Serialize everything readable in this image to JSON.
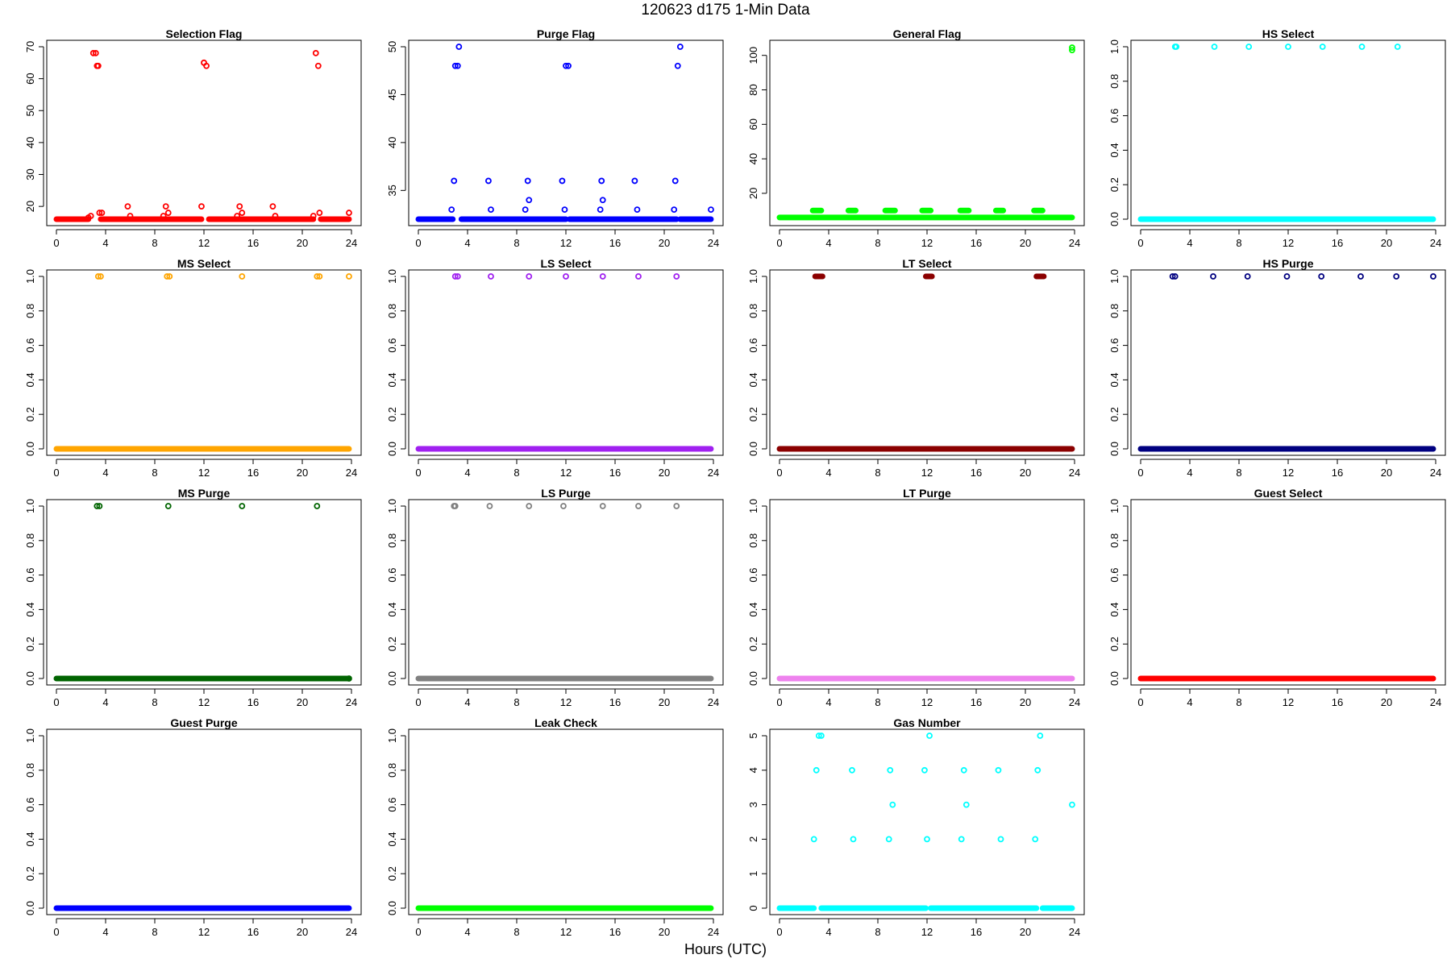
{
  "figure": {
    "title": "120623    d175    1-Min Data",
    "xlabel": "Hours (UTC)"
  },
  "chart_data": [
    {
      "type": "scatter",
      "title": "Selection Flag",
      "color": "#ff0000",
      "xlim": [
        0,
        24
      ],
      "ylim": [
        16,
        70
      ],
      "yticks": [
        20,
        30,
        40,
        50,
        60,
        70
      ],
      "xticks": [
        0,
        4,
        8,
        12,
        16,
        20,
        24
      ],
      "baseline": {
        "value": 16,
        "x_ranges": [
          [
            0,
            2.6
          ],
          [
            3.6,
            11.8
          ],
          [
            12.4,
            20.9
          ],
          [
            21.5,
            23.8
          ]
        ]
      },
      "points": [
        [
          2.6,
          16.5
        ],
        [
          2.8,
          17
        ],
        [
          3.0,
          68
        ],
        [
          3.2,
          68
        ],
        [
          3.3,
          64
        ],
        [
          3.4,
          64
        ],
        [
          3.5,
          18
        ],
        [
          3.7,
          18
        ],
        [
          5.8,
          20
        ],
        [
          6.0,
          17
        ],
        [
          8.7,
          17
        ],
        [
          8.9,
          20
        ],
        [
          9.1,
          18
        ],
        [
          11.8,
          20
        ],
        [
          12.0,
          65
        ],
        [
          12.2,
          64
        ],
        [
          14.7,
          17
        ],
        [
          14.9,
          20
        ],
        [
          15.1,
          18
        ],
        [
          17.6,
          20
        ],
        [
          17.8,
          17
        ],
        [
          20.9,
          17
        ],
        [
          21.1,
          68
        ],
        [
          21.3,
          64
        ],
        [
          21.4,
          18
        ],
        [
          23.8,
          18
        ]
      ]
    },
    {
      "type": "scatter",
      "title": "Purge Flag",
      "color": "#0000ff",
      "xlim": [
        0,
        24
      ],
      "ylim": [
        32,
        50
      ],
      "yticks": [
        35,
        40,
        45,
        50
      ],
      "xticks": [
        0,
        4,
        8,
        12,
        16,
        20,
        24
      ],
      "baseline": {
        "value": 32,
        "x_ranges": [
          [
            0,
            2.8
          ],
          [
            3.5,
            12.0
          ],
          [
            12.3,
            21.0
          ],
          [
            21.3,
            23.8
          ]
        ]
      },
      "points": [
        [
          2.7,
          33
        ],
        [
          2.9,
          36
        ],
        [
          3.0,
          48
        ],
        [
          3.2,
          48
        ],
        [
          3.3,
          50
        ],
        [
          5.7,
          36
        ],
        [
          5.9,
          33
        ],
        [
          8.7,
          33
        ],
        [
          8.9,
          36
        ],
        [
          9.0,
          34
        ],
        [
          11.7,
          36
        ],
        [
          11.9,
          33
        ],
        [
          12.0,
          48
        ],
        [
          12.2,
          48
        ],
        [
          14.8,
          33
        ],
        [
          14.9,
          36
        ],
        [
          15.0,
          34
        ],
        [
          17.6,
          36
        ],
        [
          17.8,
          33
        ],
        [
          20.8,
          33
        ],
        [
          20.9,
          36
        ],
        [
          21.1,
          48
        ],
        [
          21.3,
          50
        ],
        [
          23.8,
          33
        ]
      ]
    },
    {
      "type": "scatter",
      "title": "General Flag",
      "color": "#00ff00",
      "xlim": [
        0,
        24
      ],
      "ylim": [
        5,
        105
      ],
      "yticks": [
        20,
        40,
        60,
        80,
        100
      ],
      "xticks": [
        0,
        4,
        8,
        12,
        16,
        20,
        24
      ],
      "baseline": {
        "value": 6,
        "x_ranges": [
          [
            0,
            23.8
          ]
        ]
      },
      "segments": [
        {
          "value": 10,
          "x_ranges": [
            [
              2.7,
              3.4
            ],
            [
              5.6,
              6.2
            ],
            [
              8.6,
              9.4
            ],
            [
              11.6,
              12.3
            ],
            [
              14.7,
              15.4
            ],
            [
              17.6,
              18.2
            ],
            [
              20.7,
              21.4
            ]
          ]
        }
      ],
      "points": [
        [
          23.8,
          103
        ],
        [
          23.8,
          104.5
        ]
      ]
    },
    {
      "type": "scatter",
      "title": "HS Select",
      "color": "#00ffff",
      "xlim": [
        0,
        24
      ],
      "ylim": [
        0,
        1
      ],
      "yticks": [
        0.0,
        0.2,
        0.4,
        0.6,
        0.8,
        1.0
      ],
      "xticks": [
        0,
        4,
        8,
        12,
        16,
        20,
        24
      ],
      "baseline": {
        "value": 0,
        "x_ranges": [
          [
            0,
            23.8
          ]
        ]
      },
      "points": [
        [
          2.8,
          1
        ],
        [
          2.9,
          1
        ],
        [
          6.0,
          1
        ],
        [
          8.8,
          1
        ],
        [
          12.0,
          1
        ],
        [
          14.8,
          1
        ],
        [
          18.0,
          1
        ],
        [
          20.9,
          1
        ]
      ]
    },
    {
      "type": "scatter",
      "title": "MS Select",
      "color": "#ffa500",
      "xlim": [
        0,
        24
      ],
      "ylim": [
        0,
        1
      ],
      "yticks": [
        0.0,
        0.2,
        0.4,
        0.6,
        0.8,
        1.0
      ],
      "xticks": [
        0,
        4,
        8,
        12,
        16,
        20,
        24
      ],
      "baseline": {
        "value": 0,
        "x_ranges": [
          [
            0,
            23.8
          ]
        ]
      },
      "points": [
        [
          3.4,
          1
        ],
        [
          3.6,
          1
        ],
        [
          9.0,
          1
        ],
        [
          9.2,
          1
        ],
        [
          15.1,
          1
        ],
        [
          21.2,
          1
        ],
        [
          21.4,
          1
        ],
        [
          23.8,
          1
        ]
      ]
    },
    {
      "type": "scatter",
      "title": "LS Select",
      "color": "#a020f0",
      "xlim": [
        0,
        24
      ],
      "ylim": [
        0,
        1
      ],
      "yticks": [
        0.0,
        0.2,
        0.4,
        0.6,
        0.8,
        1.0
      ],
      "xticks": [
        0,
        4,
        8,
        12,
        16,
        20,
        24
      ],
      "baseline": {
        "value": 0,
        "x_ranges": [
          [
            0,
            23.8
          ]
        ]
      },
      "points": [
        [
          3.0,
          1
        ],
        [
          3.2,
          1
        ],
        [
          5.9,
          1
        ],
        [
          9.0,
          1
        ],
        [
          12.0,
          1
        ],
        [
          15.0,
          1
        ],
        [
          17.9,
          1
        ],
        [
          21.0,
          1
        ]
      ]
    },
    {
      "type": "scatter",
      "title": "LT Select",
      "color": "#8b0000",
      "xlim": [
        0,
        24
      ],
      "ylim": [
        0,
        1
      ],
      "yticks": [
        0.0,
        0.2,
        0.4,
        0.6,
        0.8,
        1.0
      ],
      "xticks": [
        0,
        4,
        8,
        12,
        16,
        20,
        24
      ],
      "baseline": {
        "value": 0,
        "x_ranges": [
          [
            0,
            23.8
          ]
        ]
      },
      "segments": [
        {
          "value": 1,
          "x_ranges": [
            [
              2.9,
              3.5
            ],
            [
              11.9,
              12.4
            ],
            [
              20.9,
              21.5
            ]
          ]
        }
      ],
      "points": []
    },
    {
      "type": "scatter",
      "title": "HS Purge",
      "color": "#000080",
      "xlim": [
        0,
        24
      ],
      "ylim": [
        0,
        1
      ],
      "yticks": [
        0.0,
        0.2,
        0.4,
        0.6,
        0.8,
        1.0
      ],
      "xticks": [
        0,
        4,
        8,
        12,
        16,
        20,
        24
      ],
      "baseline": {
        "value": 0,
        "x_ranges": [
          [
            0,
            23.8
          ]
        ]
      },
      "points": [
        [
          2.6,
          1
        ],
        [
          2.8,
          1
        ],
        [
          5.9,
          1
        ],
        [
          8.7,
          1
        ],
        [
          11.9,
          1
        ],
        [
          14.7,
          1
        ],
        [
          17.9,
          1
        ],
        [
          20.8,
          1
        ],
        [
          23.8,
          1
        ]
      ]
    },
    {
      "type": "scatter",
      "title": "MS Purge",
      "color": "#006400",
      "xlim": [
        0,
        24
      ],
      "ylim": [
        0,
        1
      ],
      "yticks": [
        0.0,
        0.2,
        0.4,
        0.6,
        0.8,
        1.0
      ],
      "xticks": [
        0,
        4,
        8,
        12,
        16,
        20,
        24
      ],
      "baseline": {
        "value": 0,
        "x_ranges": [
          [
            0,
            23.8
          ]
        ]
      },
      "points": [
        [
          3.3,
          1
        ],
        [
          3.5,
          1
        ],
        [
          9.1,
          1
        ],
        [
          15.1,
          1
        ],
        [
          21.2,
          1
        ],
        [
          23.8,
          0
        ]
      ]
    },
    {
      "type": "scatter",
      "title": "LS Purge",
      "color": "#808080",
      "xlim": [
        0,
        24
      ],
      "ylim": [
        0,
        1
      ],
      "yticks": [
        0.0,
        0.2,
        0.4,
        0.6,
        0.8,
        1.0
      ],
      "xticks": [
        0,
        4,
        8,
        12,
        16,
        20,
        24
      ],
      "baseline": {
        "value": 0,
        "x_ranges": [
          [
            0,
            23.8
          ]
        ]
      },
      "points": [
        [
          2.9,
          1
        ],
        [
          3.0,
          1
        ],
        [
          5.8,
          1
        ],
        [
          9.0,
          1
        ],
        [
          11.8,
          1
        ],
        [
          15.0,
          1
        ],
        [
          17.9,
          1
        ],
        [
          21.0,
          1
        ]
      ]
    },
    {
      "type": "scatter",
      "title": "LT Purge",
      "color": "#ee82ee",
      "xlim": [
        0,
        24
      ],
      "ylim": [
        0,
        1
      ],
      "yticks": [
        0.0,
        0.2,
        0.4,
        0.6,
        0.8,
        1.0
      ],
      "xticks": [
        0,
        4,
        8,
        12,
        16,
        20,
        24
      ],
      "baseline": {
        "value": 0,
        "x_ranges": [
          [
            0,
            23.8
          ]
        ]
      },
      "points": []
    },
    {
      "type": "scatter",
      "title": "Guest Select",
      "color": "#ff0000",
      "xlim": [
        0,
        24
      ],
      "ylim": [
        0,
        1
      ],
      "yticks": [
        0.0,
        0.2,
        0.4,
        0.6,
        0.8,
        1.0
      ],
      "xticks": [
        0,
        4,
        8,
        12,
        16,
        20,
        24
      ],
      "baseline": {
        "value": 0,
        "x_ranges": [
          [
            0,
            23.8
          ]
        ]
      },
      "points": []
    },
    {
      "type": "scatter",
      "title": "Guest Purge",
      "color": "#0000ff",
      "xlim": [
        0,
        24
      ],
      "ylim": [
        0,
        1
      ],
      "yticks": [
        0.0,
        0.2,
        0.4,
        0.6,
        0.8,
        1.0
      ],
      "xticks": [
        0,
        4,
        8,
        12,
        16,
        20,
        24
      ],
      "baseline": {
        "value": 0,
        "x_ranges": [
          [
            0,
            23.8
          ]
        ]
      },
      "points": []
    },
    {
      "type": "scatter",
      "title": "Leak Check",
      "color": "#00ff00",
      "xlim": [
        0,
        24
      ],
      "ylim": [
        0,
        1
      ],
      "yticks": [
        0.0,
        0.2,
        0.4,
        0.6,
        0.8,
        1.0
      ],
      "xticks": [
        0,
        4,
        8,
        12,
        16,
        20,
        24
      ],
      "baseline": {
        "value": 0,
        "x_ranges": [
          [
            0,
            23.8
          ]
        ]
      },
      "points": []
    },
    {
      "type": "scatter",
      "title": "Gas Number",
      "color": "#00ffff",
      "xlim": [
        0,
        24
      ],
      "ylim": [
        0,
        5
      ],
      "yticks": [
        0,
        1,
        2,
        3,
        4,
        5
      ],
      "xticks": [
        0,
        4,
        8,
        12,
        16,
        20,
        24
      ],
      "baseline": {
        "value": 0,
        "x_ranges": [
          [
            0,
            2.8
          ],
          [
            3.4,
            11.9
          ],
          [
            12.3,
            20.9
          ],
          [
            21.4,
            23.8
          ]
        ]
      },
      "points": [
        [
          2.8,
          2
        ],
        [
          3.0,
          4
        ],
        [
          3.2,
          5
        ],
        [
          3.4,
          5
        ],
        [
          5.9,
          4
        ],
        [
          6.0,
          2
        ],
        [
          8.9,
          2
        ],
        [
          9.0,
          4
        ],
        [
          9.2,
          3
        ],
        [
          11.8,
          4
        ],
        [
          12.0,
          2
        ],
        [
          12.2,
          5
        ],
        [
          14.8,
          2
        ],
        [
          15.0,
          4
        ],
        [
          15.2,
          3
        ],
        [
          17.8,
          4
        ],
        [
          18.0,
          2
        ],
        [
          20.8,
          2
        ],
        [
          21.0,
          4
        ],
        [
          21.2,
          5
        ],
        [
          23.8,
          3
        ]
      ]
    }
  ]
}
